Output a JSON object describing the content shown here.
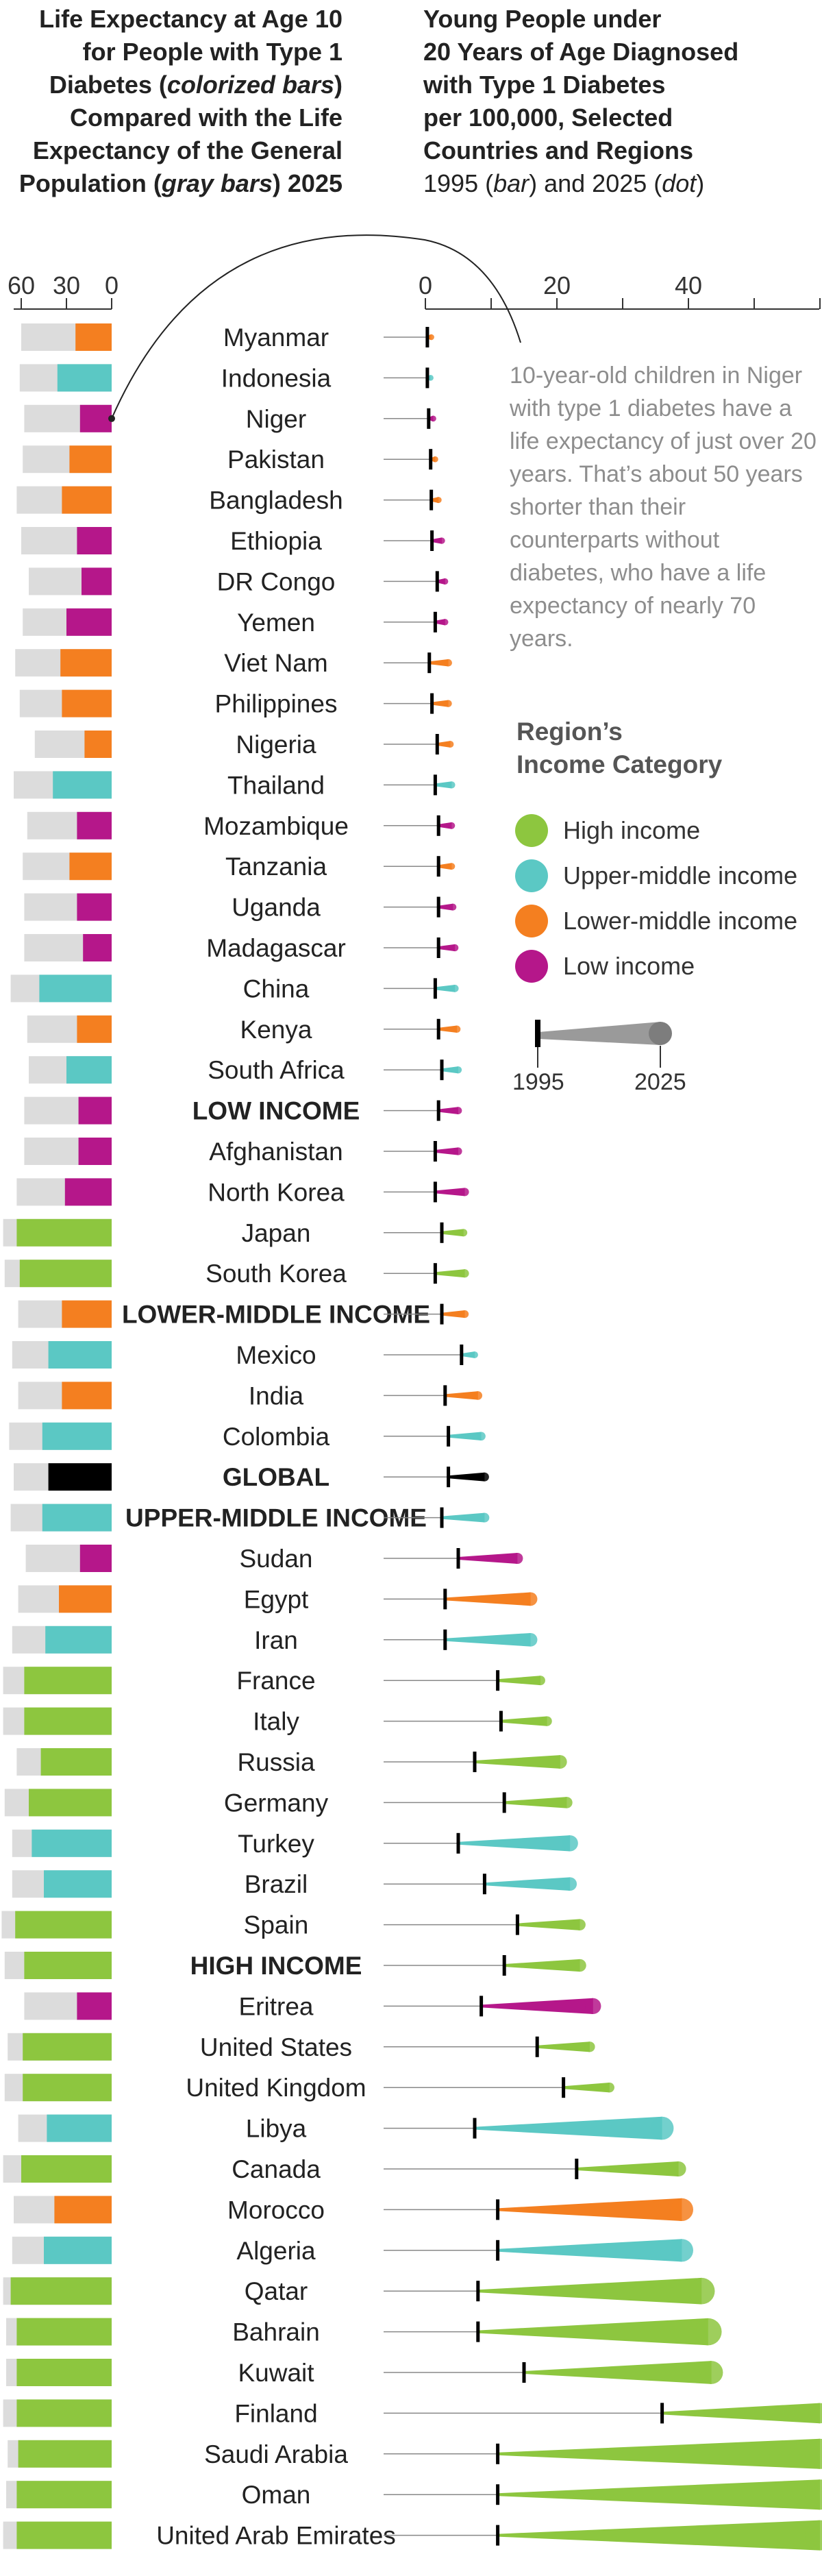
{
  "header_left": {
    "line1": "Life Expectancy at Age 10",
    "line2": "for People with Type 1",
    "line3_pre": "Diabetes (",
    "line3_em": "colorized bars",
    "line3_post": ")",
    "line4": "Compared with the Life",
    "line5": "Expectancy of the General",
    "line6_pre": "Population (",
    "line6_em": "gray bars",
    "line6_post": ") 2025"
  },
  "header_right": {
    "line1": "Young People under",
    "line2": "20 Years of Age Diagnosed",
    "line3": "with Type 1 Diabetes",
    "line4": "per 100,000, Selected",
    "line5": "Countries and Regions",
    "line6_a": "1995 (",
    "line6_b": "bar",
    "line6_c": ") and 2025 (",
    "line6_d": "dot",
    "line6_e": ")"
  },
  "annotation": "10-year-old children in Niger with type 1 diabetes have a life expectancy of just over 20 years. That’s about 50 years shorter than their counterparts without diabetes, who have a life expectancy of nearly 70 years.",
  "legend": {
    "title_line1": "Region’s",
    "title_line2": "Income Category",
    "items": [
      {
        "key": "high",
        "label": "High income"
      },
      {
        "key": "upper",
        "label": "Upper-middle income"
      },
      {
        "key": "lower",
        "label": "Lower-middle income"
      },
      {
        "key": "low",
        "label": "Low income"
      }
    ],
    "year_start": "1995",
    "year_end": "2025"
  },
  "colors": {
    "high": "#8dc63f",
    "upper": "#5bc8c4",
    "lower": "#f47f20",
    "low": "#b5178a",
    "global": "#000000",
    "gray_bar": "#dcdcdc",
    "axis": "#333333",
    "tick_text": "#333333",
    "row_line": "#888888"
  },
  "chart_data": {
    "type": "bar",
    "left_panel": {
      "title": "Life Expectancy at Age 10 for People with Type 1 Diabetes (colorized bars) Compared with the Life Expectancy of the General Population (gray bars) 2025",
      "ticks": [
        "60",
        "30",
        "0"
      ],
      "xlim": [
        0,
        70
      ]
    },
    "right_panel": {
      "title": "Young People under 20 Years of Age Diagnosed with Type 1 Diabetes per 100,000, Selected Countries and Regions",
      "ticks": [
        "0",
        "20",
        "40"
      ],
      "xlim": [
        0,
        60
      ]
    },
    "rows": [
      {
        "name": "Myanmar",
        "cat": "lower",
        "le_t1d": 24,
        "le_gen": 60,
        "inc1995": 0.3,
        "inc2025": 0.9,
        "bold": false
      },
      {
        "name": "Indonesia",
        "cat": "upper",
        "le_t1d": 36,
        "le_gen": 61,
        "inc1995": 0.3,
        "inc2025": 0.8,
        "bold": false
      },
      {
        "name": "Niger",
        "cat": "low",
        "le_t1d": 21,
        "le_gen": 58,
        "inc1995": 0.5,
        "inc2025": 1.2,
        "bold": false
      },
      {
        "name": "Pakistan",
        "cat": "lower",
        "le_t1d": 28,
        "le_gen": 59,
        "inc1995": 0.8,
        "inc2025": 1.5,
        "bold": false
      },
      {
        "name": "Bangladesh",
        "cat": "lower",
        "le_t1d": 33,
        "le_gen": 63,
        "inc1995": 0.9,
        "inc2025": 2.0,
        "bold": false
      },
      {
        "name": "Ethiopia",
        "cat": "low",
        "le_t1d": 23,
        "le_gen": 60,
        "inc1995": 1.0,
        "inc2025": 2.5,
        "bold": false
      },
      {
        "name": "DR Congo",
        "cat": "low",
        "le_t1d": 20,
        "le_gen": 55,
        "inc1995": 1.8,
        "inc2025": 3.0,
        "bold": false
      },
      {
        "name": "Yemen",
        "cat": "low",
        "le_t1d": 30,
        "le_gen": 59,
        "inc1995": 1.5,
        "inc2025": 3.0,
        "bold": false
      },
      {
        "name": "Viet Nam",
        "cat": "lower",
        "le_t1d": 34,
        "le_gen": 64,
        "inc1995": 0.6,
        "inc2025": 3.5,
        "bold": false
      },
      {
        "name": "Philippines",
        "cat": "lower",
        "le_t1d": 33,
        "le_gen": 61,
        "inc1995": 1.0,
        "inc2025": 3.5,
        "bold": false
      },
      {
        "name": "Nigeria",
        "cat": "lower",
        "le_t1d": 18,
        "le_gen": 51,
        "inc1995": 1.8,
        "inc2025": 3.8,
        "bold": false
      },
      {
        "name": "Thailand",
        "cat": "upper",
        "le_t1d": 39,
        "le_gen": 65,
        "inc1995": 1.5,
        "inc2025": 4.0,
        "bold": false
      },
      {
        "name": "Mozambique",
        "cat": "low",
        "le_t1d": 23,
        "le_gen": 56,
        "inc1995": 2.0,
        "inc2025": 4.0,
        "bold": false
      },
      {
        "name": "Tanzania",
        "cat": "lower",
        "le_t1d": 28,
        "le_gen": 59,
        "inc1995": 2.0,
        "inc2025": 4.0,
        "bold": false
      },
      {
        "name": "Uganda",
        "cat": "low",
        "le_t1d": 23,
        "le_gen": 58,
        "inc1995": 2.0,
        "inc2025": 4.2,
        "bold": false
      },
      {
        "name": "Madagascar",
        "cat": "low",
        "le_t1d": 19,
        "le_gen": 58,
        "inc1995": 2.0,
        "inc2025": 4.5,
        "bold": false
      },
      {
        "name": "China",
        "cat": "upper",
        "le_t1d": 48,
        "le_gen": 67,
        "inc1995": 1.5,
        "inc2025": 4.5,
        "bold": false
      },
      {
        "name": "Kenya",
        "cat": "lower",
        "le_t1d": 23,
        "le_gen": 56,
        "inc1995": 2.0,
        "inc2025": 4.8,
        "bold": false
      },
      {
        "name": "South Africa",
        "cat": "upper",
        "le_t1d": 30,
        "le_gen": 55,
        "inc1995": 2.5,
        "inc2025": 5.0,
        "bold": false
      },
      {
        "name": "LOW INCOME",
        "cat": "low",
        "le_t1d": 22,
        "le_gen": 58,
        "inc1995": 2.0,
        "inc2025": 5.0,
        "bold": true
      },
      {
        "name": "Afghanistan",
        "cat": "low",
        "le_t1d": 22,
        "le_gen": 58,
        "inc1995": 1.5,
        "inc2025": 5.0,
        "bold": false
      },
      {
        "name": "North Korea",
        "cat": "low",
        "le_t1d": 31,
        "le_gen": 63,
        "inc1995": 1.5,
        "inc2025": 6.0,
        "bold": false
      },
      {
        "name": "Japan",
        "cat": "high",
        "le_t1d": 63,
        "le_gen": 72,
        "inc1995": 2.5,
        "inc2025": 5.8,
        "bold": false
      },
      {
        "name": "South Korea",
        "cat": "high",
        "le_t1d": 61,
        "le_gen": 71,
        "inc1995": 1.5,
        "inc2025": 6.0,
        "bold": false
      },
      {
        "name": "LOWER-MIDDLE INCOME",
        "cat": "lower",
        "le_t1d": 33,
        "le_gen": 62,
        "inc1995": 2.5,
        "inc2025": 6.0,
        "bold": true
      },
      {
        "name": "Mexico",
        "cat": "upper",
        "le_t1d": 42,
        "le_gen": 66,
        "inc1995": 5.5,
        "inc2025": 7.5,
        "bold": false
      },
      {
        "name": "India",
        "cat": "lower",
        "le_t1d": 33,
        "le_gen": 62,
        "inc1995": 3.0,
        "inc2025": 8.0,
        "bold": false
      },
      {
        "name": "Colombia",
        "cat": "upper",
        "le_t1d": 46,
        "le_gen": 68,
        "inc1995": 3.5,
        "inc2025": 8.5,
        "bold": false
      },
      {
        "name": "GLOBAL",
        "cat": "global",
        "le_t1d": 42,
        "le_gen": 65,
        "inc1995": 3.5,
        "inc2025": 9.0,
        "bold": true
      },
      {
        "name": "UPPER-MIDDLE INCOME",
        "cat": "upper",
        "le_t1d": 46,
        "le_gen": 67,
        "inc1995": 2.5,
        "inc2025": 9.0,
        "bold": true
      },
      {
        "name": "Sudan",
        "cat": "low",
        "le_t1d": 21,
        "le_gen": 57,
        "inc1995": 5.0,
        "inc2025": 14.0,
        "bold": false
      },
      {
        "name": "Egypt",
        "cat": "lower",
        "le_t1d": 35,
        "le_gen": 62,
        "inc1995": 3.0,
        "inc2025": 16.0,
        "bold": false
      },
      {
        "name": "Iran",
        "cat": "upper",
        "le_t1d": 44,
        "le_gen": 66,
        "inc1995": 3.0,
        "inc2025": 16.0,
        "bold": false
      },
      {
        "name": "France",
        "cat": "high",
        "le_t1d": 58,
        "le_gen": 72,
        "inc1995": 11.0,
        "inc2025": 17.5,
        "bold": false
      },
      {
        "name": "Italy",
        "cat": "high",
        "le_t1d": 58,
        "le_gen": 72,
        "inc1995": 11.5,
        "inc2025": 18.5,
        "bold": false
      },
      {
        "name": "Russia",
        "cat": "high",
        "le_t1d": 47,
        "le_gen": 63,
        "inc1995": 7.5,
        "inc2025": 20.5,
        "bold": false
      },
      {
        "name": "Germany",
        "cat": "high",
        "le_t1d": 55,
        "le_gen": 71,
        "inc1995": 12.0,
        "inc2025": 21.5,
        "bold": false
      },
      {
        "name": "Turkey",
        "cat": "upper",
        "le_t1d": 53,
        "le_gen": 66,
        "inc1995": 5.0,
        "inc2025": 22.0,
        "bold": false
      },
      {
        "name": "Brazil",
        "cat": "upper",
        "le_t1d": 45,
        "le_gen": 66,
        "inc1995": 9.0,
        "inc2025": 22.0,
        "bold": false
      },
      {
        "name": "Spain",
        "cat": "high",
        "le_t1d": 64,
        "le_gen": 73,
        "inc1995": 14.0,
        "inc2025": 23.5,
        "bold": false
      },
      {
        "name": "HIGH INCOME",
        "cat": "high",
        "le_t1d": 58,
        "le_gen": 71,
        "inc1995": 12.0,
        "inc2025": 23.5,
        "bold": true
      },
      {
        "name": "Eritrea",
        "cat": "low",
        "le_t1d": 23,
        "le_gen": 58,
        "inc1995": 8.5,
        "inc2025": 25.5,
        "bold": false
      },
      {
        "name": "United States",
        "cat": "high",
        "le_t1d": 59,
        "le_gen": 69,
        "inc1995": 17.0,
        "inc2025": 25.0,
        "bold": false
      },
      {
        "name": "United Kingdom",
        "cat": "high",
        "le_t1d": 59,
        "le_gen": 71,
        "inc1995": 21.0,
        "inc2025": 28.0,
        "bold": false
      },
      {
        "name": "Libya",
        "cat": "upper",
        "le_t1d": 43,
        "le_gen": 62,
        "inc1995": 7.5,
        "inc2025": 36.0,
        "bold": false
      },
      {
        "name": "Canada",
        "cat": "high",
        "le_t1d": 60,
        "le_gen": 72,
        "inc1995": 23.0,
        "inc2025": 38.5,
        "bold": false
      },
      {
        "name": "Morocco",
        "cat": "lower",
        "le_t1d": 38,
        "le_gen": 65,
        "inc1995": 11.0,
        "inc2025": 39.0,
        "bold": false
      },
      {
        "name": "Algeria",
        "cat": "upper",
        "le_t1d": 45,
        "le_gen": 66,
        "inc1995": 11.0,
        "inc2025": 39.0,
        "bold": false
      },
      {
        "name": "Qatar",
        "cat": "high",
        "le_t1d": 67,
        "le_gen": 72,
        "inc1995": 8.0,
        "inc2025": 42.0,
        "bold": false
      },
      {
        "name": "Bahrain",
        "cat": "high",
        "le_t1d": 63,
        "le_gen": 70,
        "inc1995": 8.0,
        "inc2025": 43.0,
        "bold": false
      },
      {
        "name": "Kuwait",
        "cat": "high",
        "le_t1d": 63,
        "le_gen": 70,
        "inc1995": 15.0,
        "inc2025": 43.5,
        "bold": false
      },
      {
        "name": "Finland",
        "cat": "high",
        "le_t1d": 63,
        "le_gen": 72,
        "inc1995": 36.0,
        "inc2025": 60.0,
        "bold": false
      },
      {
        "name": "Saudi Arabia",
        "cat": "high",
        "le_t1d": 62,
        "le_gen": 69,
        "inc1995": 11.0,
        "inc2025": 60.0,
        "bold": false
      },
      {
        "name": "Oman",
        "cat": "high",
        "le_t1d": 63,
        "le_gen": 70,
        "inc1995": 11.0,
        "inc2025": 60.0,
        "bold": false
      },
      {
        "name": "United Arab Emirates",
        "cat": "high",
        "le_t1d": 63,
        "le_gen": 72,
        "inc1995": 11.0,
        "inc2025": 60.0,
        "bold": false
      }
    ]
  }
}
